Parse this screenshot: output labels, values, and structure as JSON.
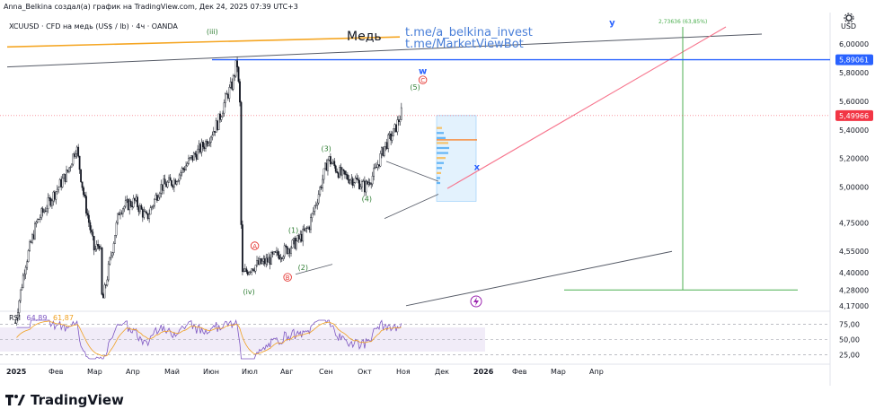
{
  "header": {
    "title": "Anna_Belkina создал(а) график на TradingView.com, Дек 24, 2025 07:39 UTC+3"
  },
  "symbol_line": "XCUUSD · CFD на медь (US$ / lb) · 4ч · OANDA",
  "currency": "USD",
  "logo_text": "TradingView",
  "icons": [
    "settings-icon",
    "tradingview-logo-icon",
    "flash-icon"
  ],
  "rsi": {
    "label": "RSI",
    "value1": "64,89",
    "value2": "61,87"
  },
  "colors": {
    "price": "#131722",
    "blue_level": "#2962ff",
    "current_price": "#f23645",
    "orange_trend": "#f5a623",
    "red_projection": "#f7768e",
    "green_projection": "#4caf50",
    "rsi_line": "#7e57c2",
    "rsi_ma": "#f0a020",
    "wave_green": "#2e7d32",
    "wave_red": "#e53935",
    "note_blue": "#4a7fd8"
  },
  "chart_data": [
    {
      "type": "candlestick",
      "title": "XCUUSD",
      "xlabel": "",
      "ylabel": "",
      "x_tick_labels": [
        "2025",
        "Фев",
        "Мар",
        "Апр",
        "Май",
        "Июн",
        "Июл",
        "Авг",
        "Сен",
        "Окт",
        "Ноя",
        "Дек",
        "2026",
        "Фев",
        "Мар",
        "Апр"
      ],
      "y_tick_labels": [
        "6,00000",
        "5,80000",
        "5,60000",
        "5,40000",
        "5,20000",
        "5,00000",
        "4,75000",
        "4,55000",
        "4,40000",
        "4,28000",
        "4,17000"
      ],
      "y_ticks": [
        6.0,
        5.8,
        5.6,
        5.4,
        5.2,
        5.0,
        4.75,
        4.55,
        4.4,
        4.28,
        4.17
      ],
      "ylim": [
        4.15,
        6.12
      ],
      "price_anchors": [
        {
          "t": 0.0,
          "p": 4.05
        },
        {
          "t": 0.25,
          "p": 4.45
        },
        {
          "t": 0.55,
          "p": 4.75
        },
        {
          "t": 1.0,
          "p": 4.95
        },
        {
          "t": 1.35,
          "p": 5.1
        },
        {
          "t": 1.58,
          "p": 5.29
        },
        {
          "t": 1.78,
          "p": 4.93
        },
        {
          "t": 2.05,
          "p": 4.55
        },
        {
          "t": 2.2,
          "p": 4.62
        },
        {
          "t": 2.25,
          "p": 4.18
        },
        {
          "t": 2.45,
          "p": 4.48
        },
        {
          "t": 2.7,
          "p": 4.85
        },
        {
          "t": 3.1,
          "p": 4.9
        },
        {
          "t": 3.4,
          "p": 4.78
        },
        {
          "t": 3.75,
          "p": 5.0
        },
        {
          "t": 4.1,
          "p": 5.04
        },
        {
          "t": 4.5,
          "p": 5.18
        },
        {
          "t": 4.9,
          "p": 5.3
        },
        {
          "t": 5.25,
          "p": 5.45
        },
        {
          "t": 5.45,
          "p": 5.62
        },
        {
          "t": 5.62,
          "p": 5.72
        },
        {
          "t": 5.74,
          "p": 5.88
        },
        {
          "t": 5.82,
          "p": 5.55
        },
        {
          "t": 5.86,
          "p": 4.38
        },
        {
          "t": 6.1,
          "p": 4.44
        },
        {
          "t": 6.5,
          "p": 4.48
        },
        {
          "t": 6.95,
          "p": 4.55
        },
        {
          "t": 7.3,
          "p": 4.62
        },
        {
          "t": 7.6,
          "p": 4.72
        },
        {
          "t": 7.9,
          "p": 5.0
        },
        {
          "t": 8.1,
          "p": 5.2
        },
        {
          "t": 8.45,
          "p": 5.08
        },
        {
          "t": 8.8,
          "p": 5.05
        },
        {
          "t": 9.05,
          "p": 5.0
        },
        {
          "t": 9.3,
          "p": 5.1
        },
        {
          "t": 9.55,
          "p": 5.28
        },
        {
          "t": 9.8,
          "p": 5.38
        },
        {
          "t": 10.0,
          "p": 5.52
        }
      ],
      "horizontal_levels": [
        {
          "price": 5.89061,
          "label": "5,89061",
          "color": "#2962ff"
        },
        {
          "price": 5.49966,
          "label": "5,49966",
          "color": "#f23645"
        }
      ],
      "wave_labels": [
        {
          "text": "(iii)",
          "t": 5.1,
          "p": 6.07,
          "color": "#2e7d32"
        },
        {
          "text": "(iv)",
          "t": 6.05,
          "p": 4.25,
          "color": "#2e7d32"
        },
        {
          "text": "(1)",
          "t": 7.2,
          "p": 4.68,
          "color": "#2e7d32"
        },
        {
          "text": "(2)",
          "t": 7.45,
          "p": 4.42,
          "color": "#2e7d32"
        },
        {
          "text": "(3)",
          "t": 8.05,
          "p": 5.25,
          "color": "#2e7d32"
        },
        {
          "text": "(4)",
          "t": 9.1,
          "p": 4.9,
          "color": "#2e7d32"
        },
        {
          "text": "(5)",
          "t": 10.35,
          "p": 5.68,
          "color": "#2e7d32"
        },
        {
          "text": "A",
          "t": 6.2,
          "p": 4.57,
          "color": "#e53935"
        },
        {
          "text": "B",
          "t": 7.05,
          "p": 4.35,
          "color": "#e53935"
        },
        {
          "text": "C",
          "t": 10.55,
          "p": 5.73,
          "color": "#e53935"
        },
        {
          "text": "w",
          "t": 10.55,
          "p": 5.79,
          "color": "#2962ff"
        },
        {
          "text": "x",
          "t": 11.95,
          "p": 5.12,
          "color": "#2962ff"
        },
        {
          "text": "y",
          "t": 15.45,
          "p": 6.13,
          "color": "#2962ff"
        }
      ],
      "annotations": [
        {
          "text": "Медь",
          "color": "#131722"
        },
        {
          "text": "t.me/a_belkina_invest",
          "color": "#4a7fd8"
        },
        {
          "text": "t.me/MarketViewBot",
          "color": "#4a7fd8"
        },
        {
          "text": "2,73636 (63,85%)",
          "color": "#4caf50"
        }
      ]
    },
    {
      "type": "line",
      "title": "RSI",
      "series": [
        {
          "name": "RSI",
          "current": 64.89
        },
        {
          "name": "RSI MA",
          "current": 61.87
        }
      ],
      "y_tick_labels": [
        "75,00",
        "50,00",
        "25,00"
      ],
      "y_ticks": [
        75,
        50,
        25
      ],
      "ylim": [
        15,
        85
      ],
      "band": [
        30,
        70
      ]
    }
  ]
}
